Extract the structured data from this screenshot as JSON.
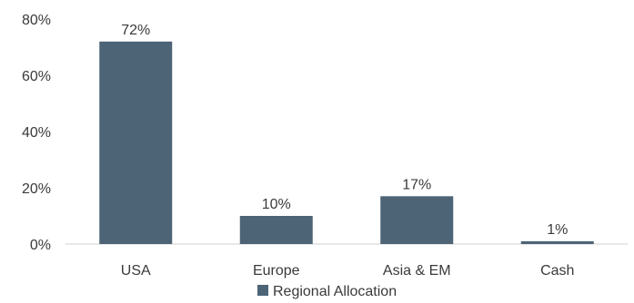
{
  "chart_data": {
    "type": "bar",
    "categories": [
      "USA",
      "Europe",
      "Asia & EM",
      "Cash"
    ],
    "series": [
      {
        "name": "Regional Allocation",
        "values": [
          72,
          10,
          17,
          1
        ],
        "data_labels": [
          "72%",
          "10%",
          "17%",
          "1%"
        ],
        "color": "#4d6477"
      }
    ],
    "ylim": [
      0,
      80
    ],
    "yticks": [
      0,
      20,
      40,
      60,
      80
    ],
    "ytick_labels": [
      "0%",
      "20%",
      "40%",
      "60%",
      "80%"
    ],
    "grid": false,
    "legend_position": "bottom-center",
    "axis_color": "#d0d0d0"
  }
}
